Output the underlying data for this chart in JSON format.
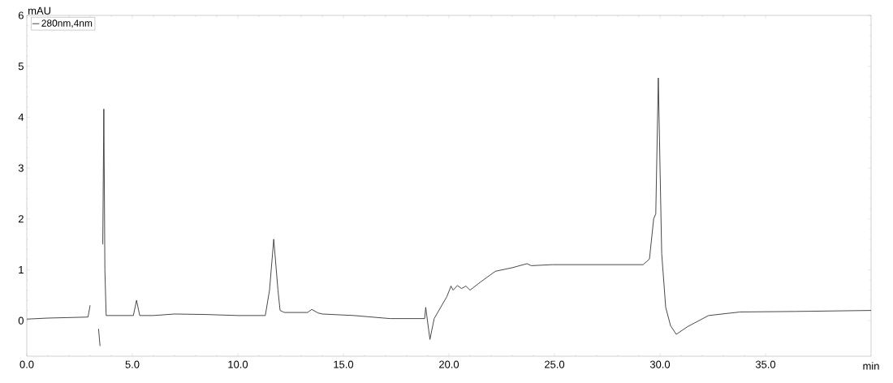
{
  "chart_data": {
    "type": "line",
    "xlabel": "min",
    "ylabel": "mAU",
    "xlim": [
      0,
      40
    ],
    "ylim": [
      -0.7,
      6
    ],
    "xticks": [
      {
        "value": 0,
        "label": "0.0"
      },
      {
        "value": 5,
        "label": "5.0"
      },
      {
        "value": 10,
        "label": "10.0"
      },
      {
        "value": 15,
        "label": "15.0"
      },
      {
        "value": 20,
        "label": "20.0"
      },
      {
        "value": 25,
        "label": "25.0"
      },
      {
        "value": 30,
        "label": "30.0"
      },
      {
        "value": 35,
        "label": "35.0"
      }
    ],
    "yticks": [
      0,
      1,
      2,
      3,
      4,
      5,
      6
    ],
    "legend": "top left",
    "line_style": "solid",
    "series": [
      {
        "name": "280nm,4nm",
        "color": "#333333",
        "x": [
          0,
          1.0,
          2.0,
          2.9,
          3.0,
          3.09,
          3.18,
          3.3,
          3.4,
          3.47,
          3.54,
          3.6,
          3.65,
          3.7,
          3.76,
          4.5,
          5.05,
          5.2,
          5.35,
          6.0,
          7.0,
          8.5,
          10.0,
          11.3,
          11.5,
          11.7,
          11.9,
          12.0,
          12.2,
          13.3,
          13.5,
          13.8,
          14.0,
          15.5,
          17.2,
          18.85,
          18.9,
          18.95,
          19.1,
          19.3,
          19.9,
          20.1,
          20.2,
          20.4,
          20.6,
          20.8,
          21.0,
          21.5,
          22.2,
          23.0,
          23.7,
          23.9,
          24.9,
          26.5,
          28.0,
          29.2,
          29.5,
          29.7,
          29.8,
          29.92,
          30.08,
          30.27,
          30.5,
          30.77,
          31.3,
          32.3,
          33.8,
          36.4,
          40.0
        ],
        "values": [
          0.03,
          0.05,
          0.06,
          0.07,
          0.3,
          null,
          null,
          null,
          -0.16,
          -0.5,
          null,
          1.5,
          4.16,
          1.0,
          0.1,
          0.1,
          0.1,
          0.4,
          0.1,
          0.1,
          0.13,
          0.12,
          0.1,
          0.1,
          0.6,
          1.6,
          0.6,
          0.2,
          0.16,
          0.16,
          0.22,
          0.15,
          0.13,
          0.1,
          0.04,
          0.04,
          0.26,
          0.1,
          -0.37,
          0.04,
          0.47,
          0.68,
          0.6,
          0.69,
          0.63,
          0.68,
          0.6,
          0.76,
          0.97,
          1.04,
          1.12,
          1.08,
          1.1,
          1.1,
          1.1,
          1.1,
          1.21,
          2.0,
          2.1,
          4.77,
          1.32,
          0.26,
          -0.1,
          -0.27,
          -0.12,
          0.1,
          0.17,
          0.18,
          0.2
        ]
      }
    ]
  }
}
